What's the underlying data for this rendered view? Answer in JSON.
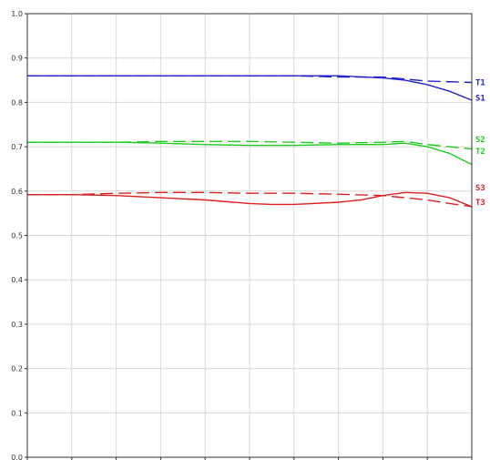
{
  "chart_data": {
    "type": "line",
    "title": "",
    "xlabel": "",
    "ylabel": "",
    "ylim": [
      0,
      1
    ],
    "xlim": [
      0,
      10
    ],
    "yticks": [
      "0.0",
      "0.1",
      "0.2",
      "0.3",
      "0.4",
      "0.5",
      "0.6",
      "0.7",
      "0.8",
      "0.9",
      "1.0"
    ],
    "x_tick_count": 11,
    "grid": true,
    "legend": "inline-right",
    "series": [
      {
        "name": "S1",
        "color": "#2222cc",
        "style": "solid",
        "x": [
          0,
          1,
          2,
          3,
          4,
          5,
          6,
          7,
          8,
          8.5,
          9,
          9.5,
          10
        ],
        "y": [
          0.86,
          0.86,
          0.86,
          0.86,
          0.86,
          0.86,
          0.86,
          0.86,
          0.855,
          0.85,
          0.84,
          0.825,
          0.805
        ]
      },
      {
        "name": "T1",
        "color": "#2222cc",
        "style": "dashed",
        "x": [
          0,
          1,
          2,
          3,
          4,
          5,
          6,
          7,
          8,
          9,
          10
        ],
        "y": [
          0.86,
          0.86,
          0.86,
          0.86,
          0.86,
          0.86,
          0.86,
          0.857,
          0.857,
          0.848,
          0.845
        ]
      },
      {
        "name": "S2",
        "color": "#22cc22",
        "style": "solid",
        "x": [
          0,
          1,
          2,
          3,
          4,
          5,
          6,
          7,
          8,
          8.5,
          9,
          9.5,
          10
        ],
        "y": [
          0.71,
          0.71,
          0.71,
          0.708,
          0.705,
          0.703,
          0.703,
          0.705,
          0.705,
          0.708,
          0.7,
          0.685,
          0.66
        ]
      },
      {
        "name": "T2",
        "color": "#22cc22",
        "style": "dashed",
        "x": [
          0,
          1,
          2,
          3,
          4,
          5,
          6,
          7,
          8,
          8.5,
          9,
          9.5,
          10
        ],
        "y": [
          0.71,
          0.71,
          0.71,
          0.712,
          0.712,
          0.712,
          0.71,
          0.708,
          0.71,
          0.712,
          0.705,
          0.7,
          0.695
        ]
      },
      {
        "name": "S3",
        "color": "#dd2222",
        "style": "solid",
        "x": [
          0,
          1,
          2,
          3,
          4,
          5,
          5.5,
          6,
          7,
          7.5,
          8,
          8.5,
          9,
          9.5,
          10
        ],
        "y": [
          0.592,
          0.592,
          0.59,
          0.585,
          0.58,
          0.572,
          0.57,
          0.57,
          0.575,
          0.58,
          0.59,
          0.597,
          0.595,
          0.585,
          0.565
        ]
      },
      {
        "name": "T3",
        "color": "#dd2222",
        "style": "dashed",
        "x": [
          0,
          1,
          2,
          3,
          4,
          5,
          6,
          7,
          8,
          8.5,
          9,
          9.5,
          10
        ],
        "y": [
          0.592,
          0.592,
          0.595,
          0.597,
          0.597,
          0.595,
          0.595,
          0.593,
          0.59,
          0.585,
          0.58,
          0.572,
          0.565
        ]
      }
    ],
    "end_labels": [
      {
        "text": "T1",
        "color": "#2222cc",
        "y": 0.845
      },
      {
        "text": "S1",
        "color": "#2222cc",
        "y": 0.81
      },
      {
        "text": "S2",
        "color": "#22cc22",
        "y": 0.717
      },
      {
        "text": "T2",
        "color": "#22cc22",
        "y": 0.69
      },
      {
        "text": "S3",
        "color": "#dd2222",
        "y": 0.608
      },
      {
        "text": "T3",
        "color": "#dd2222",
        "y": 0.575
      }
    ]
  }
}
